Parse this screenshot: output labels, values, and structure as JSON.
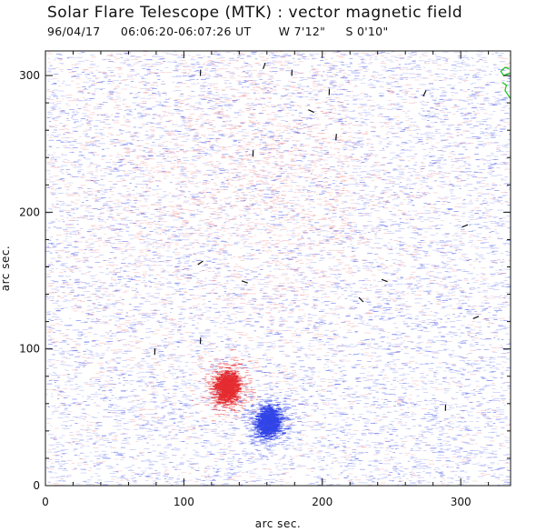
{
  "header": {
    "title": "Solar Flare Telescope (MTK) : vector magnetic field",
    "date": "96/04/17",
    "time_range": "06:06:20-06:07:26 UT",
    "longitude": "W 7'12\"",
    "latitude": "S 0'10\""
  },
  "colors": {
    "positive": "#e4262a",
    "negative": "#2a3ee6",
    "transverse": "#111111",
    "contour": "#16c416",
    "axis": "#111111"
  },
  "chart_data": {
    "type": "magnetogram",
    "title": "Solar Flare Telescope (MTK) : vector magnetic field",
    "xlabel": "arc sec.",
    "ylabel": "arc sec.",
    "xlim": [
      0,
      336
    ],
    "ylim": [
      0,
      318
    ],
    "xticks": [
      0,
      100,
      200,
      300
    ],
    "yticks": [
      0,
      100,
      200,
      300
    ],
    "strong_regions": [
      {
        "name": "positive-polarity-core",
        "polarity": "positive",
        "x": 130,
        "y": 72
      },
      {
        "name": "negative-polarity-core",
        "polarity": "negative",
        "x": 160,
        "y": 46
      }
    ],
    "transverse_vectors": [
      {
        "x": 112,
        "y": 302,
        "angle": 88
      },
      {
        "x": 158,
        "y": 307,
        "angle": 70
      },
      {
        "x": 178,
        "y": 302,
        "angle": 88
      },
      {
        "x": 192,
        "y": 274,
        "angle": -25
      },
      {
        "x": 205,
        "y": 288,
        "angle": 88
      },
      {
        "x": 210,
        "y": 255,
        "angle": 85
      },
      {
        "x": 150,
        "y": 243,
        "angle": 88
      },
      {
        "x": 274,
        "y": 287,
        "angle": 65
      },
      {
        "x": 303,
        "y": 190,
        "angle": 22
      },
      {
        "x": 112,
        "y": 163,
        "angle": 35
      },
      {
        "x": 144,
        "y": 149,
        "angle": -20
      },
      {
        "x": 228,
        "y": 136,
        "angle": -45
      },
      {
        "x": 245,
        "y": 150,
        "angle": -20
      },
      {
        "x": 311,
        "y": 123,
        "angle": 22
      },
      {
        "x": 112,
        "y": 106,
        "angle": 88
      },
      {
        "x": 79,
        "y": 98,
        "angle": 88
      },
      {
        "x": 289,
        "y": 57,
        "angle": 88
      }
    ]
  }
}
